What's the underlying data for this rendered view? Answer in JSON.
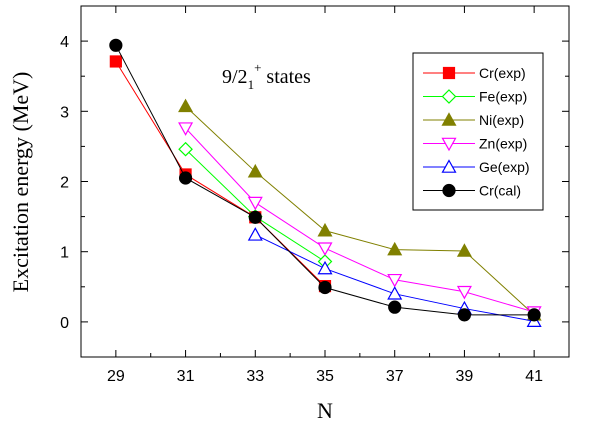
{
  "chart_data": {
    "type": "line",
    "xlabel": "N",
    "ylabel": "Excitation energy  (MeV)",
    "xlim": [
      28,
      42
    ],
    "ylim": [
      -0.5,
      4.5
    ],
    "xticks": [
      29,
      31,
      33,
      35,
      37,
      39,
      41
    ],
    "yticks": [
      0,
      1,
      2,
      3,
      4
    ],
    "legend_position": "top-right",
    "annotation": {
      "main": "9/2",
      "sub": "1",
      "sup": "+",
      "rest": " states"
    },
    "series": [
      {
        "name": "Cr(exp)",
        "color": "#ff0000",
        "marker": "square-filled",
        "x": [
          29,
          31,
          33,
          35
        ],
        "y": [
          3.71,
          2.1,
          1.49,
          0.51
        ]
      },
      {
        "name": "Fe(exp)",
        "color": "#00ff00",
        "marker": "diamond-open",
        "x": [
          31,
          33,
          35
        ],
        "y": [
          2.46,
          1.5,
          0.86
        ]
      },
      {
        "name": "Ni(exp)",
        "color": "#808000",
        "marker": "triangle-up-filled",
        "x": [
          31,
          33,
          35,
          37,
          39,
          41
        ],
        "y": [
          3.07,
          2.14,
          1.3,
          1.03,
          1.01,
          0.1
        ]
      },
      {
        "name": "Zn(exp)",
        "color": "#ff00ff",
        "marker": "triangle-down-open",
        "x": [
          31,
          33,
          35,
          37,
          39,
          41
        ],
        "y": [
          2.76,
          1.7,
          1.05,
          0.6,
          0.43,
          0.14
        ]
      },
      {
        "name": "Ge(exp)",
        "color": "#0000ff",
        "marker": "triangle-up-open",
        "x": [
          33,
          35,
          37,
          39,
          41
        ],
        "y": [
          1.24,
          0.76,
          0.4,
          0.19,
          0.01
        ]
      },
      {
        "name": "Cr(cal)",
        "color": "#000000",
        "marker": "circle-filled",
        "x": [
          29,
          31,
          33,
          35,
          37,
          39,
          41
        ],
        "y": [
          3.94,
          2.05,
          1.49,
          0.49,
          0.21,
          0.1,
          0.1
        ]
      }
    ]
  }
}
